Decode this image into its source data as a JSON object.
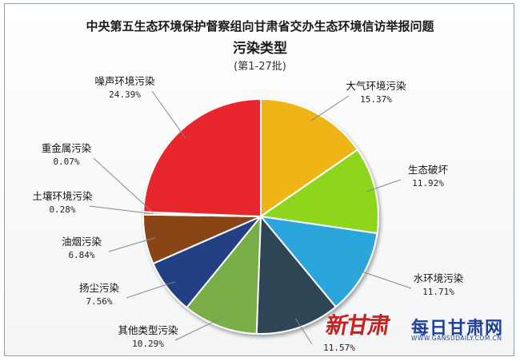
{
  "header": {
    "title": "中央第五生态环境保护督察组向甘肃省交办生态环境信访举报问题",
    "subtitle": "污染类型",
    "batch": "(第1-27批)"
  },
  "watermark": {
    "logo_text": "新甘肃",
    "brand": "每日甘肃网",
    "url": "WWW.GANSUDAILY.COM.CN"
  },
  "chart_data": {
    "type": "pie",
    "title": "中央第五生态环境保护督察组向甘肃省交办生态环境信访举报问题",
    "subtitle": "污染类型 (第1-27批)",
    "unit": "%",
    "slices": [
      {
        "name": "大气环境污染",
        "value": 15.37,
        "label": "15.37%",
        "color": "#efb419"
      },
      {
        "name": "生态破坏",
        "value": 11.92,
        "label": "11.92%",
        "color": "#8ed61f"
      },
      {
        "name": "水环境污染",
        "value": 11.71,
        "label": "11.71%",
        "color": "#2aa6dc"
      },
      {
        "name": "",
        "value": 11.57,
        "label": "11.57%",
        "color": "#2e4457"
      },
      {
        "name": "其他类型污染",
        "value": 10.29,
        "label": "10.29%",
        "color": "#79ae4a"
      },
      {
        "name": "扬尘污染",
        "value": 7.56,
        "label": "7.56%",
        "color": "#213f83"
      },
      {
        "name": "油烟污染",
        "value": 6.84,
        "label": "6.84%",
        "color": "#8a4512"
      },
      {
        "name": "土壤环境污染",
        "value": 0.28,
        "label": "0.28%",
        "color": "#7a6a55"
      },
      {
        "name": "重金属污染",
        "value": 0.07,
        "label": "0.07%",
        "color": "#5f5f5f"
      },
      {
        "name": "噪声环境污染",
        "value": 24.39,
        "label": "24.39%",
        "color": "#e8262e"
      }
    ]
  }
}
